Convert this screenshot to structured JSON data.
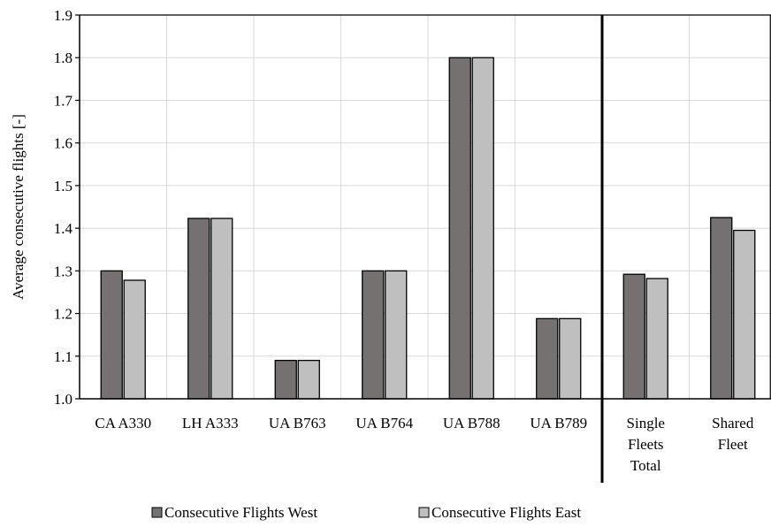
{
  "chart_data": {
    "type": "bar",
    "categories": [
      [
        "CA A330"
      ],
      [
        "LH A333"
      ],
      [
        "UA B763"
      ],
      [
        "UA B764"
      ],
      [
        "UA B788"
      ],
      [
        "UA B789"
      ],
      [
        "Single",
        "Fleets",
        "Total"
      ],
      [
        "Shared",
        "Fleet"
      ]
    ],
    "series": [
      {
        "name": "Consecutive Flights West",
        "color": "#767171",
        "values": [
          1.3,
          1.423,
          1.09,
          1.3,
          1.8,
          1.188,
          1.292,
          1.425
        ]
      },
      {
        "name": "Consecutive Flights East",
        "color": "#bfbfbf",
        "values": [
          1.278,
          1.423,
          1.09,
          1.3,
          1.8,
          1.188,
          1.282,
          1.395
        ]
      }
    ],
    "ylabel": "Average  consecutive flights [-]",
    "xlabel": "",
    "ylim": [
      1.0,
      1.9
    ],
    "yticks": [
      "1.0",
      "1.1",
      "1.2",
      "1.3",
      "1.4",
      "1.5",
      "1.6",
      "1.7",
      "1.8",
      "1.9"
    ],
    "grid": true,
    "separator_after_category": 6,
    "legend_position": "bottom"
  }
}
